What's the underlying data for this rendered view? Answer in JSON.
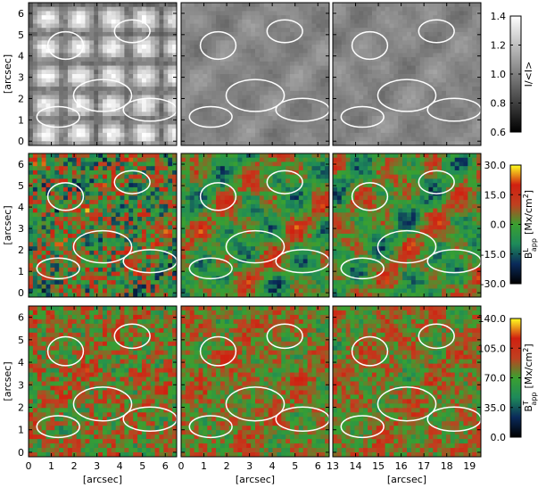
{
  "figure": {
    "columns": [
      {
        "xlim": [
          0,
          6.5
        ],
        "xticks": [
          0,
          1,
          2,
          3,
          4,
          5,
          6
        ],
        "xlabel": "[arcsec]"
      },
      {
        "xlim": [
          0,
          6.5
        ],
        "xticks": [
          0,
          1,
          2,
          3,
          4,
          5,
          6
        ],
        "xlabel": "[arcsec]"
      },
      {
        "xlim": [
          13,
          19.5
        ],
        "xticks": [
          13,
          14,
          15,
          16,
          17,
          18,
          19
        ],
        "xlabel": "[arcsec]"
      }
    ],
    "rows": [
      {
        "ylim": [
          -0.2,
          6.5
        ],
        "yticks": [
          0,
          1,
          2,
          3,
          4,
          5,
          6
        ],
        "ylabel": "[arcsec]",
        "colorbar": {
          "lim": [
            0.6,
            1.4
          ],
          "ticks": [
            0.6,
            0.8,
            {
              "value": 1,
              "label": "1.0"
            },
            1.2,
            1.4
          ],
          "label": {
            "base": "I/<I>"
          },
          "colors": [
            "#000000",
            "#555555",
            "#aaaaaa",
            "#ffffff"
          ]
        }
      },
      {
        "ylim": [
          -0.2,
          6.5
        ],
        "yticks": [
          0,
          1,
          2,
          3,
          4,
          5,
          6
        ],
        "ylabel": "[arcsec]",
        "colorbar": {
          "lim": [
            -30,
            30
          ],
          "ticks": [
            {
              "value": -30,
              "label": "-30.0"
            },
            {
              "value": -15,
              "label": "-15.0"
            },
            {
              "value": 0,
              "label": "0.0"
            },
            {
              "value": 15,
              "label": "15.0"
            },
            {
              "value": 30,
              "label": "30.0"
            }
          ],
          "label": {
            "base": "B",
            "sup": "L",
            "sub": "app",
            "unit": "[Mx/cm",
            "unit_sup": "2",
            "close": "]"
          },
          "colors": [
            "#000000",
            "#0a2a5a",
            "#1e8a5a",
            "#3aa030",
            "#c04020",
            "#d02010",
            "#ffff20"
          ]
        }
      },
      {
        "ylim": [
          -0.2,
          6.5
        ],
        "yticks": [
          0,
          1,
          2,
          3,
          4,
          5,
          6
        ],
        "ylabel": "[arcsec]",
        "colorbar": {
          "lim": [
            0,
            140
          ],
          "ticks": [
            {
              "value": 0,
              "label": "0.0"
            },
            {
              "value": 35,
              "label": "35.0"
            },
            {
              "value": 70,
              "label": "70.0"
            },
            {
              "value": 105,
              "label": "105.0"
            },
            {
              "value": 140,
              "label": "140.0"
            }
          ],
          "label": {
            "base": "B",
            "sup": "T",
            "sub": "app",
            "unit": "[Mx/cm",
            "unit_sup": "2",
            "close": "]"
          },
          "colors": [
            "#000000",
            "#0a2a5a",
            "#1e8a5a",
            "#3aa030",
            "#c04020",
            "#d02010",
            "#ffff20"
          ]
        }
      }
    ]
  }
}
